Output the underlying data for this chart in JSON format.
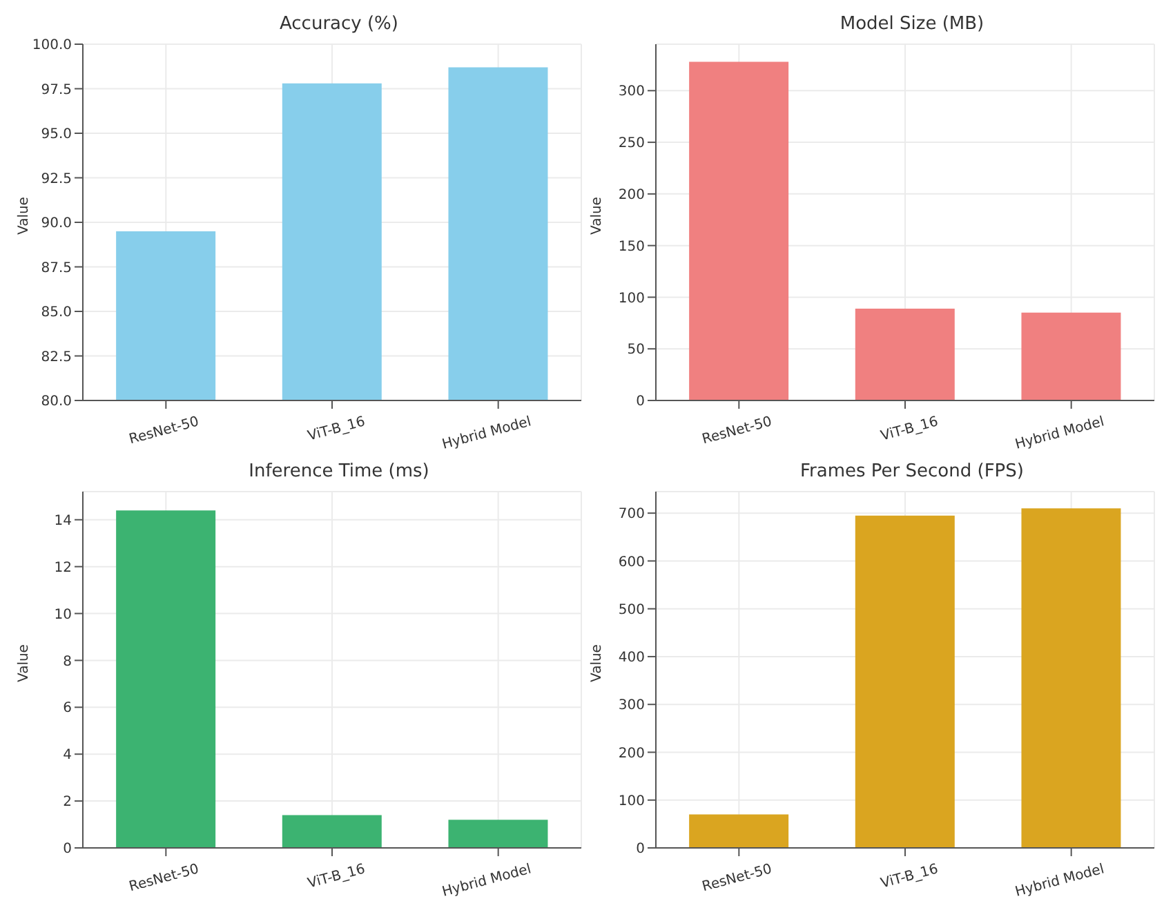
{
  "chart_data": [
    {
      "type": "bar",
      "title": "Accuracy (%)",
      "ylabel": "Value",
      "categories": [
        "ResNet-50",
        "ViT-B_16",
        "Hybrid Model"
      ],
      "values": [
        89.5,
        97.8,
        98.7
      ],
      "color": "#87ceeb",
      "ylim": [
        80,
        100
      ],
      "yticks": [
        {
          "value": 80,
          "label": "80.0"
        },
        82.5,
        {
          "value": 85,
          "label": "85.0"
        },
        87.5,
        {
          "value": 90,
          "label": "90.0"
        },
        92.5,
        {
          "value": 95,
          "label": "95.0"
        },
        97.5,
        {
          "value": 100,
          "label": "100.0"
        }
      ],
      "grid": true,
      "legend": false
    },
    {
      "type": "bar",
      "title": "Model Size (MB)",
      "ylabel": "Value",
      "categories": [
        "ResNet-50",
        "ViT-B_16",
        "Hybrid Model"
      ],
      "values": [
        328,
        89,
        85
      ],
      "color": "#f08080",
      "ylim": [
        0,
        345
      ],
      "yticks": [
        0,
        50,
        100,
        150,
        200,
        250,
        300
      ],
      "grid": true,
      "legend": false
    },
    {
      "type": "bar",
      "title": "Inference Time (ms)",
      "ylabel": "Value",
      "categories": [
        "ResNet-50",
        "ViT-B_16",
        "Hybrid Model"
      ],
      "values": [
        14.4,
        1.4,
        1.2
      ],
      "color": "#3cb371",
      "ylim": [
        0,
        15.2
      ],
      "yticks": [
        0,
        2,
        4,
        6,
        8,
        10,
        12,
        14
      ],
      "grid": true,
      "legend": false
    },
    {
      "type": "bar",
      "title": "Frames Per Second (FPS)",
      "ylabel": "Value",
      "categories": [
        "ResNet-50",
        "ViT-B_16",
        "Hybrid Model"
      ],
      "values": [
        70,
        695,
        710
      ],
      "color": "#daa520",
      "ylim": [
        0,
        745
      ],
      "yticks": [
        0,
        100,
        200,
        300,
        400,
        500,
        600,
        700
      ],
      "grid": true,
      "legend": false
    }
  ]
}
